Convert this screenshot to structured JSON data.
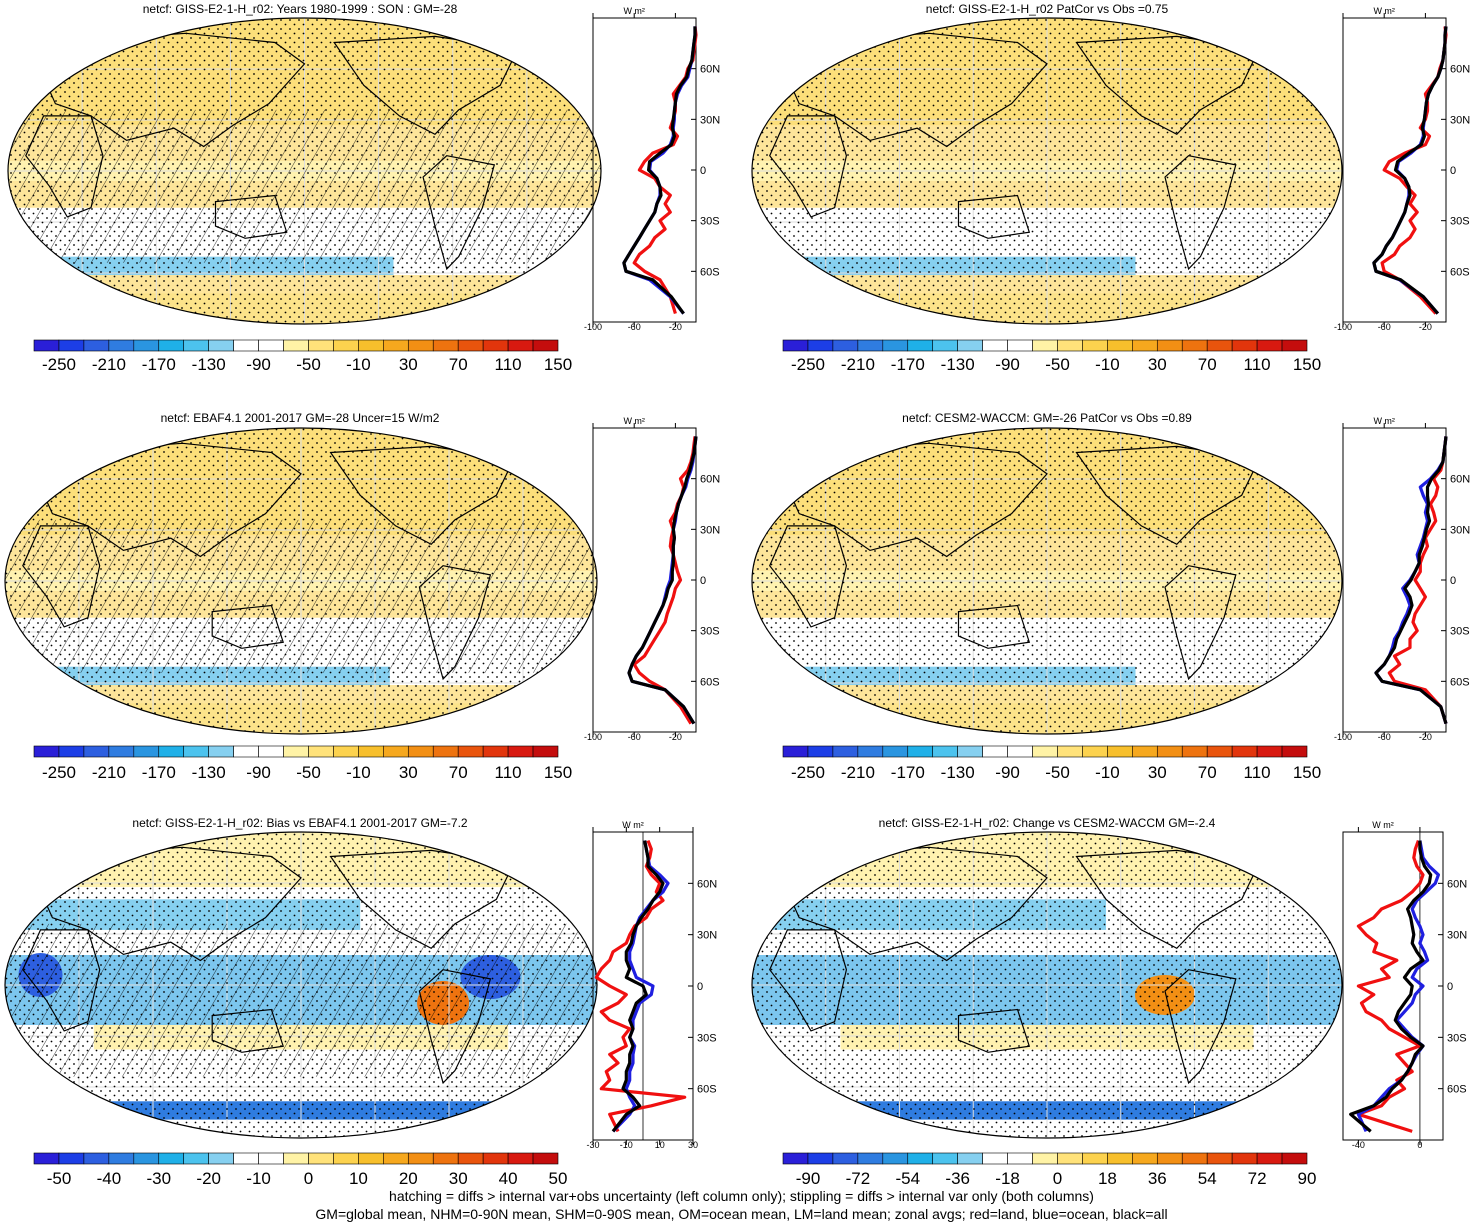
{
  "colors": {
    "ocean_line": "#1f1fe0",
    "land_line": "#f01010",
    "all_line": "#000000",
    "land_outline": "#000000",
    "palette_abs": [
      "#2a1fd8",
      "#1c3ee6",
      "#2d5fe0",
      "#2f7ce0",
      "#2a95e0",
      "#1fb0e8",
      "#4cc3ee",
      "#86d0f0",
      "#ffffff",
      "#ffffff",
      "#fff3a6",
      "#ffe27a",
      "#fcd24e",
      "#f7bf2c",
      "#f6a81e",
      "#f28f14",
      "#ee730f",
      "#e9540d",
      "#e2350c",
      "#d81910",
      "#c40d0d"
    ],
    "palette_diff": [
      "#2a1fd8",
      "#1c3ee6",
      "#2d5fe0",
      "#2f7ce0",
      "#2a95e0",
      "#1fb0e8",
      "#4cc3ee",
      "#86d0f0",
      "#ffffff",
      "#ffffff",
      "#fff3a6",
      "#ffe27a",
      "#fcd24e",
      "#f7bf2c",
      "#f6a81e",
      "#f28f14",
      "#ee730f",
      "#e9540d",
      "#e2350c",
      "#d81910",
      "#c40d0d"
    ]
  },
  "chart_data": [
    {
      "type": "heatmap",
      "title": "netcf: GISS-E2-1-H_r02: Years 1980-1999 : SON : GM=-28",
      "colorbar_labels": [
        "-250",
        "-210",
        "-170",
        "-130",
        "-90",
        "-50",
        "-10",
        "30",
        "70",
        "110",
        "150"
      ],
      "profile": {
        "unit": "W m²",
        "x_ticks": [
          "-100",
          "-60",
          "-20"
        ],
        "xlim": [
          -100,
          0
        ],
        "lat_ticks": [
          "60N",
          "30N",
          "0",
          "30S",
          "60S"
        ],
        "lat": [
          -85,
          -75,
          -65,
          -60,
          -55,
          -50,
          -45,
          -40,
          -35,
          -30,
          -25,
          -20,
          -15,
          -10,
          -5,
          0,
          5,
          10,
          15,
          20,
          25,
          30,
          35,
          40,
          45,
          50,
          55,
          60,
          65,
          70,
          75,
          80,
          85
        ],
        "land": [
          -20,
          -25,
          -35,
          -50,
          -60,
          -55,
          -45,
          -40,
          -30,
          -35,
          -25,
          -30,
          -25,
          -35,
          -40,
          -55,
          -50,
          -42,
          -22,
          -18,
          -25,
          -22,
          -20,
          -20,
          -22,
          -16,
          -10,
          -8,
          -3,
          -2,
          -1,
          0,
          -1
        ],
        "ocean": [
          -12,
          -25,
          -45,
          -68,
          -70,
          -65,
          -60,
          -55,
          -50,
          -45,
          -40,
          -38,
          -35,
          -35,
          -38,
          -45,
          -44,
          -32,
          -25,
          -22,
          -22,
          -21,
          -21,
          -20,
          -18,
          -14,
          -8,
          -6,
          -4,
          -3,
          -2,
          -1,
          -1
        ],
        "all": [
          -12,
          -24,
          -42,
          -68,
          -70,
          -65,
          -60,
          -55,
          -50,
          -45,
          -40,
          -38,
          -34,
          -35,
          -38,
          -46,
          -45,
          -35,
          -24,
          -21,
          -23,
          -22,
          -21,
          -20,
          -19,
          -15,
          -9,
          -7,
          -4,
          -3,
          -2,
          -1,
          -1
        ]
      }
    },
    {
      "type": "heatmap",
      "title": "netcf: GISS-E2-1-H_r02 PatCor vs Obs =0.75",
      "colorbar_labels": [
        "-250",
        "-210",
        "-170",
        "-130",
        "-90",
        "-50",
        "-10",
        "30",
        "70",
        "110",
        "150"
      ],
      "profile": {
        "unit": "W m²",
        "x_ticks": [
          "-100",
          "-60",
          "-20"
        ],
        "xlim": [
          -100,
          0
        ],
        "lat_ticks": [
          "60N",
          "30N",
          "0",
          "30S",
          "60S"
        ],
        "lat": [
          -85,
          -75,
          -65,
          -60,
          -55,
          -50,
          -45,
          -40,
          -35,
          -30,
          -25,
          -20,
          -15,
          -10,
          -5,
          0,
          5,
          10,
          15,
          20,
          25,
          30,
          35,
          40,
          45,
          50,
          55,
          60,
          65,
          70,
          75,
          80,
          85
        ],
        "land": [
          -10,
          -25,
          -45,
          -60,
          -62,
          -50,
          -45,
          -35,
          -30,
          -35,
          -28,
          -35,
          -30,
          -38,
          -45,
          -60,
          -55,
          -40,
          -20,
          -16,
          -25,
          -20,
          -18,
          -18,
          -20,
          -14,
          -8,
          -6,
          -3,
          -2,
          -1,
          0,
          -1
        ],
        "ocean": [
          -8,
          -22,
          -45,
          -68,
          -70,
          -62,
          -58,
          -52,
          -48,
          -44,
          -40,
          -38,
          -36,
          -36,
          -40,
          -48,
          -46,
          -34,
          -25,
          -22,
          -22,
          -21,
          -20,
          -19,
          -17,
          -13,
          -8,
          -5,
          -3,
          -2,
          -1,
          -1,
          0
        ],
        "all": [
          -8,
          -22,
          -44,
          -68,
          -70,
          -62,
          -58,
          -52,
          -48,
          -44,
          -40,
          -38,
          -35,
          -36,
          -40,
          -49,
          -47,
          -36,
          -24,
          -21,
          -23,
          -21,
          -20,
          -19,
          -17,
          -13,
          -8,
          -5,
          -3,
          -2,
          -1,
          -1,
          0
        ]
      }
    },
    {
      "type": "heatmap",
      "title": "netcf: EBAF4.1 2001-2017 GM=-28 Uncer=15 W/m2",
      "colorbar_labels": [
        "-250",
        "-210",
        "-170",
        "-130",
        "-90",
        "-50",
        "-10",
        "30",
        "70",
        "110",
        "150"
      ],
      "profile": {
        "unit": "W m²",
        "x_ticks": [
          "-100",
          "-60",
          "-20"
        ],
        "xlim": [
          -100,
          0
        ],
        "lat_ticks": [
          "60N",
          "30N",
          "0",
          "30S",
          "60S"
        ],
        "lat": [
          -85,
          -75,
          -65,
          -60,
          -55,
          -50,
          -45,
          -40,
          -35,
          -30,
          -25,
          -20,
          -15,
          -10,
          -5,
          0,
          5,
          10,
          15,
          20,
          25,
          30,
          35,
          40,
          45,
          50,
          55,
          60,
          65,
          70,
          75,
          80,
          85
        ],
        "land": [
          -5,
          -15,
          -30,
          -45,
          -55,
          -60,
          -50,
          -45,
          -40,
          -35,
          -30,
          -28,
          -25,
          -22,
          -20,
          -15,
          -18,
          -20,
          -22,
          -25,
          -24,
          -22,
          -25,
          -20,
          -18,
          -14,
          -12,
          -15,
          -8,
          -5,
          -3,
          -2,
          -1
        ],
        "ocean": [
          -2,
          -12,
          -30,
          -62,
          -65,
          -62,
          -58,
          -52,
          -48,
          -44,
          -40,
          -36,
          -32,
          -30,
          -28,
          -25,
          -24,
          -23,
          -22,
          -22,
          -21,
          -22,
          -20,
          -19,
          -17,
          -14,
          -10,
          -8,
          -5,
          -3,
          -2,
          -1,
          0
        ],
        "all": [
          -2,
          -12,
          -30,
          -62,
          -65,
          -62,
          -58,
          -52,
          -48,
          -44,
          -40,
          -36,
          -32,
          -29,
          -27,
          -23,
          -23,
          -22,
          -22,
          -22,
          -21,
          -22,
          -21,
          -19,
          -17,
          -14,
          -11,
          -9,
          -6,
          -4,
          -2,
          -1,
          0
        ]
      }
    },
    {
      "type": "heatmap",
      "title": "netcf: CESM2-WACCM: GM=-26 PatCor vs Obs =0.89",
      "colorbar_labels": [
        "-250",
        "-210",
        "-170",
        "-130",
        "-90",
        "-50",
        "-10",
        "30",
        "70",
        "110",
        "150"
      ],
      "profile": {
        "unit": "W m²",
        "x_ticks": [
          "-100",
          "-60",
          "-20"
        ],
        "xlim": [
          -100,
          0
        ],
        "lat_ticks": [
          "60N",
          "30N",
          "0",
          "30S",
          "60S"
        ],
        "lat": [
          -85,
          -75,
          -65,
          -60,
          -55,
          -50,
          -45,
          -40,
          -35,
          -30,
          -25,
          -20,
          -15,
          -10,
          -5,
          0,
          5,
          10,
          15,
          20,
          25,
          30,
          35,
          40,
          45,
          50,
          55,
          60,
          65,
          70,
          75,
          80,
          85
        ],
        "land": [
          0,
          -5,
          -20,
          -50,
          -55,
          -45,
          -50,
          -35,
          -35,
          -28,
          -32,
          -30,
          -25,
          -20,
          -25,
          -30,
          -25,
          -25,
          -22,
          -18,
          -20,
          -15,
          -10,
          -12,
          -15,
          -10,
          -8,
          -12,
          -5,
          -3,
          -2,
          -1,
          0
        ],
        "ocean": [
          0,
          -5,
          -25,
          -62,
          -68,
          -60,
          -55,
          -52,
          -50,
          -45,
          -42,
          -38,
          -35,
          -38,
          -42,
          -35,
          -30,
          -26,
          -28,
          -25,
          -22,
          -20,
          -18,
          -20,
          -18,
          -22,
          -25,
          -15,
          -8,
          -3,
          -2,
          -1,
          0
        ],
        "all": [
          0,
          -5,
          -25,
          -62,
          -68,
          -60,
          -55,
          -50,
          -48,
          -44,
          -40,
          -36,
          -33,
          -35,
          -40,
          -34,
          -30,
          -26,
          -26,
          -23,
          -21,
          -19,
          -16,
          -18,
          -17,
          -18,
          -18,
          -14,
          -7,
          -3,
          -2,
          -1,
          0
        ]
      }
    },
    {
      "type": "heatmap",
      "title": "netcf: GISS-E2-1-H_r02: Bias vs EBAF4.1 2001-2017  GM=-7.2",
      "colorbar_labels": [
        "-50",
        "-40",
        "-30",
        "-20",
        "-10",
        "0",
        "10",
        "20",
        "30",
        "40",
        "50"
      ],
      "profile": {
        "unit": "W m²",
        "x_ticks": [
          "-30",
          "-10",
          "10",
          "30"
        ],
        "xlim": [
          -30,
          30
        ],
        "zero_line": 0,
        "lat_ticks": [
          "60N",
          "30N",
          "0",
          "30S",
          "60S"
        ],
        "lat": [
          -85,
          -75,
          -70,
          -65,
          -60,
          -55,
          -50,
          -45,
          -40,
          -35,
          -30,
          -25,
          -20,
          -15,
          -10,
          -5,
          0,
          5,
          10,
          15,
          20,
          25,
          30,
          35,
          40,
          45,
          50,
          55,
          60,
          65,
          70,
          75,
          80,
          85
        ],
        "land": [
          -15,
          -20,
          5,
          25,
          -25,
          -20,
          -22,
          -15,
          -20,
          -10,
          -12,
          -8,
          -20,
          -25,
          -15,
          -10,
          -20,
          -28,
          -25,
          -20,
          -18,
          -10,
          -8,
          -5,
          2,
          5,
          12,
          8,
          10,
          5,
          2,
          4,
          5,
          3
        ],
        "ocean": [
          -18,
          -8,
          -5,
          -8,
          -10,
          -8,
          -8,
          -6,
          -6,
          -5,
          -8,
          -6,
          -6,
          -4,
          -2,
          5,
          6,
          -4,
          -6,
          -8,
          -8,
          -6,
          -5,
          -4,
          -2,
          2,
          6,
          12,
          15,
          10,
          4,
          3,
          2,
          1
        ],
        "all": [
          -18,
          -10,
          -2,
          -6,
          -12,
          -10,
          -10,
          -8,
          -8,
          -6,
          -8,
          -6,
          -8,
          -6,
          -4,
          2,
          0,
          -10,
          -8,
          -10,
          -10,
          -7,
          -6,
          -4,
          -1,
          3,
          6,
          10,
          12,
          8,
          3,
          3,
          2,
          1
        ]
      }
    },
    {
      "type": "heatmap",
      "title": "netcf: GISS-E2-1-H_r02: Change vs CESM2-WACCM GM=-2.4",
      "colorbar_labels": [
        "-90",
        "-72",
        "-54",
        "-36",
        "-18",
        "0",
        "18",
        "36",
        "54",
        "72",
        "90"
      ],
      "profile": {
        "unit": "W m²",
        "x_ticks": [
          "-40",
          "0"
        ],
        "xlim": [
          -50,
          15
        ],
        "zero_line": 0,
        "lat_ticks": [
          "60N",
          "30N",
          "0",
          "30S",
          "60S"
        ],
        "lat": [
          -85,
          -75,
          -70,
          -65,
          -60,
          -55,
          -50,
          -45,
          -40,
          -35,
          -30,
          -25,
          -20,
          -15,
          -10,
          -5,
          0,
          5,
          10,
          15,
          20,
          25,
          30,
          35,
          40,
          45,
          50,
          55,
          60,
          65,
          70,
          75,
          80,
          85
        ],
        "land": [
          -5,
          -40,
          -25,
          -20,
          -10,
          -15,
          -5,
          -10,
          -15,
          0,
          -10,
          -20,
          -25,
          -35,
          -38,
          -30,
          -40,
          -20,
          -25,
          -15,
          -30,
          -28,
          -35,
          -40,
          -30,
          -25,
          -12,
          -5,
          0,
          2,
          -2,
          -4,
          -3,
          -1
        ],
        "ocean": [
          -35,
          -40,
          -30,
          -25,
          -20,
          -12,
          -8,
          -5,
          -2,
          2,
          -5,
          -10,
          -15,
          -10,
          -5,
          -3,
          2,
          -5,
          -2,
          5,
          3,
          0,
          2,
          0,
          -3,
          -5,
          -2,
          4,
          10,
          12,
          6,
          2,
          1,
          0
        ],
        "all": [
          -32,
          -45,
          -30,
          -22,
          -18,
          -12,
          -8,
          -5,
          -3,
          2,
          -6,
          -12,
          -16,
          -14,
          -10,
          -6,
          -5,
          -10,
          -6,
          2,
          -2,
          -5,
          -4,
          -5,
          -6,
          -8,
          -4,
          2,
          6,
          7,
          3,
          1,
          0,
          0
        ]
      }
    }
  ],
  "footer": {
    "line1": "hatching = diffs > internal var+obs uncertainty (left column only); stippling = diffs > internal var only (both columns)",
    "line2": "GM=global mean, NHM=0-90N mean, SHM=0-90S mean, OM=ocean mean, LM=land mean; zonal avgs; red=land, blue=ocean, black=all"
  }
}
